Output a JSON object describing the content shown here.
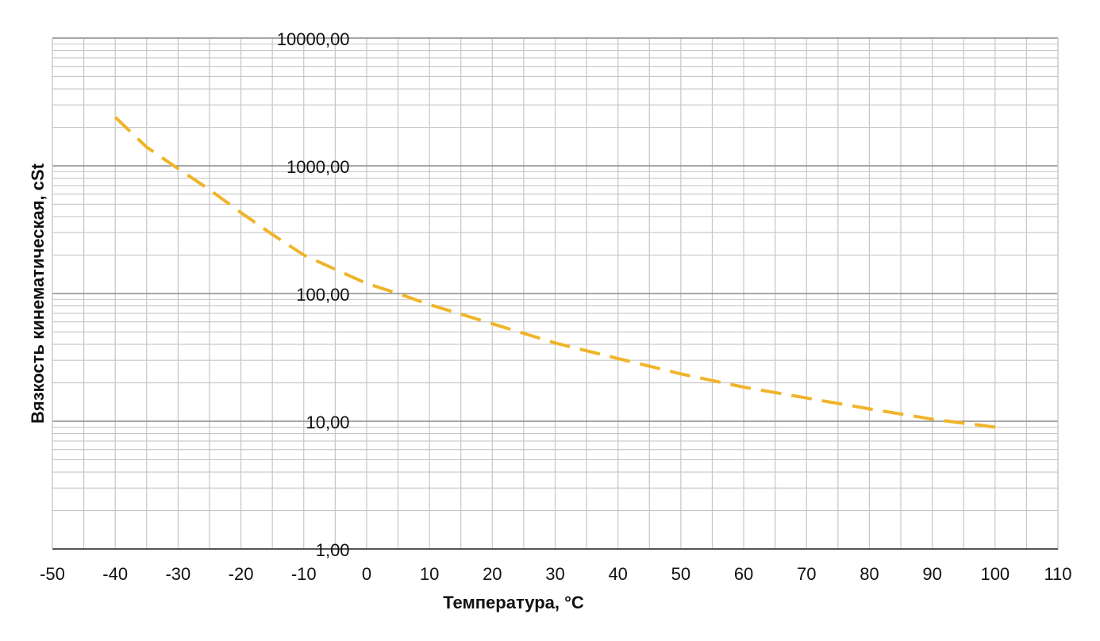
{
  "chart_data": {
    "type": "line",
    "title": "",
    "xlabel": "Температура, °C",
    "ylabel": "Вязкость кинематическая, cSt",
    "xlim": [
      -50,
      110
    ],
    "ylim": [
      1,
      10000
    ],
    "yscale": "log",
    "grid": true,
    "legend": "none",
    "x_ticks": [
      -50,
      -40,
      -30,
      -20,
      -10,
      0,
      10,
      20,
      30,
      40,
      50,
      60,
      70,
      80,
      90,
      100,
      110
    ],
    "x_tick_labels": [
      "-50",
      "-40",
      "-30",
      "-20",
      "-10",
      "0",
      "10",
      "20",
      "30",
      "40",
      "50",
      "60",
      "70",
      "80",
      "90",
      "100",
      "110"
    ],
    "y_ticks": [
      1,
      10,
      100,
      1000,
      10000
    ],
    "y_tick_labels": [
      "1,00",
      "10,00",
      "100,00",
      "1000,00",
      "10000,00"
    ],
    "series": [
      {
        "color": "#F0B429",
        "line_style": "dashed",
        "x": [
          -40,
          -35,
          -30,
          -25,
          -20,
          -15,
          -10,
          -5,
          0,
          5,
          10,
          20,
          30,
          40,
          50,
          60,
          70,
          80,
          90,
          100
        ],
        "y": [
          2400,
          1400,
          950,
          650,
          430,
          290,
          200,
          155,
          120,
          100,
          82,
          58,
          41,
          31,
          23.5,
          18.5,
          15.2,
          12.5,
          10.4,
          9.0
        ]
      }
    ]
  },
  "colors": {
    "grid_major": "#8a8a8a",
    "grid_minor": "#c6c6c6",
    "axis": "#444444",
    "series": "#F0B429"
  }
}
